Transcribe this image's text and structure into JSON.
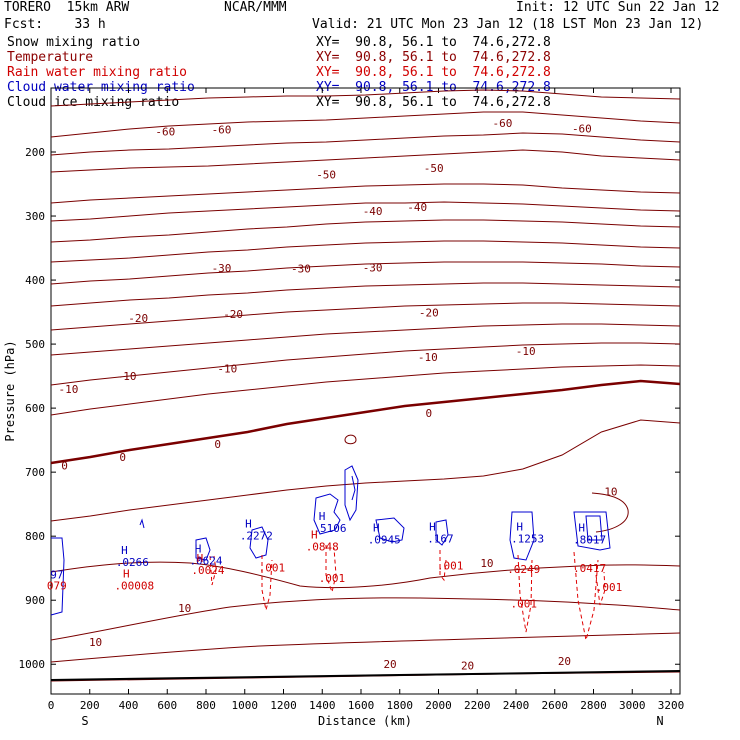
{
  "header": {
    "model": "TORERO  15km ARW",
    "org": "NCAR/MMM",
    "init": "Init: 12 UTC Sun 22 Jan 12",
    "fcst": "Fcst:    33 h",
    "valid": "Valid: 21 UTC Mon 23 Jan 12 (18 LST Mon 23 Jan 12)"
  },
  "legend": [
    {
      "label": "Snow mixing ratio",
      "xy": "XY=  90.8, 56.1 to  74.6,272.8",
      "color": "#000000"
    },
    {
      "label": "Temperature",
      "xy": "XY=  90.8, 56.1 to  74.6,272.8",
      "color": "#8b0000"
    },
    {
      "label": "Rain water mixing ratio",
      "xy": "XY=  90.8, 56.1 to  74.6,272.8",
      "color": "#d00000"
    },
    {
      "label": "Cloud water mixing ratio",
      "xy": "XY=  90.8, 56.1 to  74.6,272.8",
      "color": "#0000c0"
    },
    {
      "label": "Cloud ice mixing ratio",
      "xy": "XY=  90.8, 56.1 to  74.6,272.8",
      "color": "#000000"
    }
  ],
  "chart_data": {
    "type": "cross-section contour",
    "xlabel": "Distance (km)",
    "ylabel": "Pressure (hPa)",
    "xlim": [
      0,
      3250
    ],
    "ylim": [
      1045,
      100
    ],
    "x_ticks": [
      0,
      200,
      400,
      600,
      800,
      1000,
      1200,
      1400,
      1600,
      1800,
      2000,
      2200,
      2400,
      2600,
      2800,
      3000,
      3200
    ],
    "y_ticks": [
      200,
      300,
      400,
      500,
      600,
      700,
      800,
      900,
      1000
    ],
    "start_label": "S",
    "end_label": "N",
    "temperature_labels": [
      {
        "text": "-60",
        "x": 590,
        "p": 168
      },
      {
        "text": "-60",
        "x": 880,
        "p": 165
      },
      {
        "text": "-60",
        "x": 2330,
        "p": 155
      },
      {
        "text": "-60",
        "x": 2740,
        "p": 163
      },
      {
        "text": "-50",
        "x": 1420,
        "p": 235
      },
      {
        "text": "-50",
        "x": 1975,
        "p": 225
      },
      {
        "text": "-40",
        "x": 1660,
        "p": 292
      },
      {
        "text": "-40",
        "x": 1890,
        "p": 286
      },
      {
        "text": "-30",
        "x": 880,
        "p": 381
      },
      {
        "text": "-30",
        "x": 1290,
        "p": 382
      },
      {
        "text": "-30",
        "x": 1660,
        "p": 380
      },
      {
        "text": "-20",
        "x": 450,
        "p": 459
      },
      {
        "text": "-20",
        "x": 940,
        "p": 453
      },
      {
        "text": "-20",
        "x": 1950,
        "p": 451
      },
      {
        "text": "-10",
        "x": 90,
        "p": 570
      },
      {
        "text": "-10",
        "x": 390,
        "p": 550
      },
      {
        "text": "-10",
        "x": 910,
        "p": 538
      },
      {
        "text": "-10",
        "x": 1945,
        "p": 520
      },
      {
        "text": "-10",
        "x": 2450,
        "p": 511
      },
      {
        "text": "0",
        "x": 70,
        "p": 690
      },
      {
        "text": "0",
        "x": 370,
        "p": 676
      },
      {
        "text": "0",
        "x": 860,
        "p": 656
      },
      {
        "text": "0",
        "x": 1950,
        "p": 608
      },
      {
        "text": "10",
        "x": 2890,
        "p": 730
      },
      {
        "text": "10",
        "x": 2250,
        "p": 842
      },
      {
        "text": "10",
        "x": 690,
        "p": 912
      },
      {
        "text": "10",
        "x": 230,
        "p": 965
      },
      {
        "text": "20",
        "x": 1750,
        "p": 1000
      },
      {
        "text": "20",
        "x": 2150,
        "p": 1002
      },
      {
        "text": "20",
        "x": 2650,
        "p": 995
      }
    ],
    "cloud_water_maxima": [
      {
        "label": "H",
        "value": ".0266",
        "x": 420,
        "p": 840
      },
      {
        "label": "H",
        "value": ".0624",
        "x": 800,
        "p": 838
      },
      {
        "label": "H",
        "value": ".2272",
        "x": 1060,
        "p": 799
      },
      {
        "label": "H",
        "value": ".5106",
        "x": 1440,
        "p": 787
      },
      {
        "label": "H",
        "value": ".0945",
        "x": 1720,
        "p": 805
      },
      {
        "label": "H",
        "value": ".167",
        "x": 2010,
        "p": 804
      },
      {
        "label": "H",
        "value": ".1253",
        "x": 2460,
        "p": 804
      },
      {
        "label": "H",
        "value": ".8017",
        "x": 2780,
        "p": 805
      },
      {
        "label": "",
        "value": "97",
        "x": 30,
        "p": 860
      }
    ],
    "rain_water_maxima": [
      {
        "label": "H",
        "value": ".00008",
        "x": 430,
        "p": 877
      },
      {
        "label": "H",
        "value": ".0024",
        "x": 810,
        "p": 853
      },
      {
        "label": "",
        "value": ".001",
        "x": 1140,
        "p": 849
      },
      {
        "label": "H",
        "value": ".0848",
        "x": 1400,
        "p": 816
      },
      {
        "label": "",
        "value": ".001",
        "x": 1450,
        "p": 865
      },
      {
        "label": "",
        "value": ".001",
        "x": 2060,
        "p": 846
      },
      {
        "label": "",
        "value": ".0249",
        "x": 2440,
        "p": 851
      },
      {
        "label": "",
        "value": ".001",
        "x": 2440,
        "p": 905
      },
      {
        "label": "",
        "value": ".0417",
        "x": 2780,
        "p": 850
      },
      {
        "label": "",
        "value": ".001",
        "x": 2880,
        "p": 879
      },
      {
        "label": "",
        "value": "079",
        "x": 30,
        "p": 877
      }
    ]
  }
}
